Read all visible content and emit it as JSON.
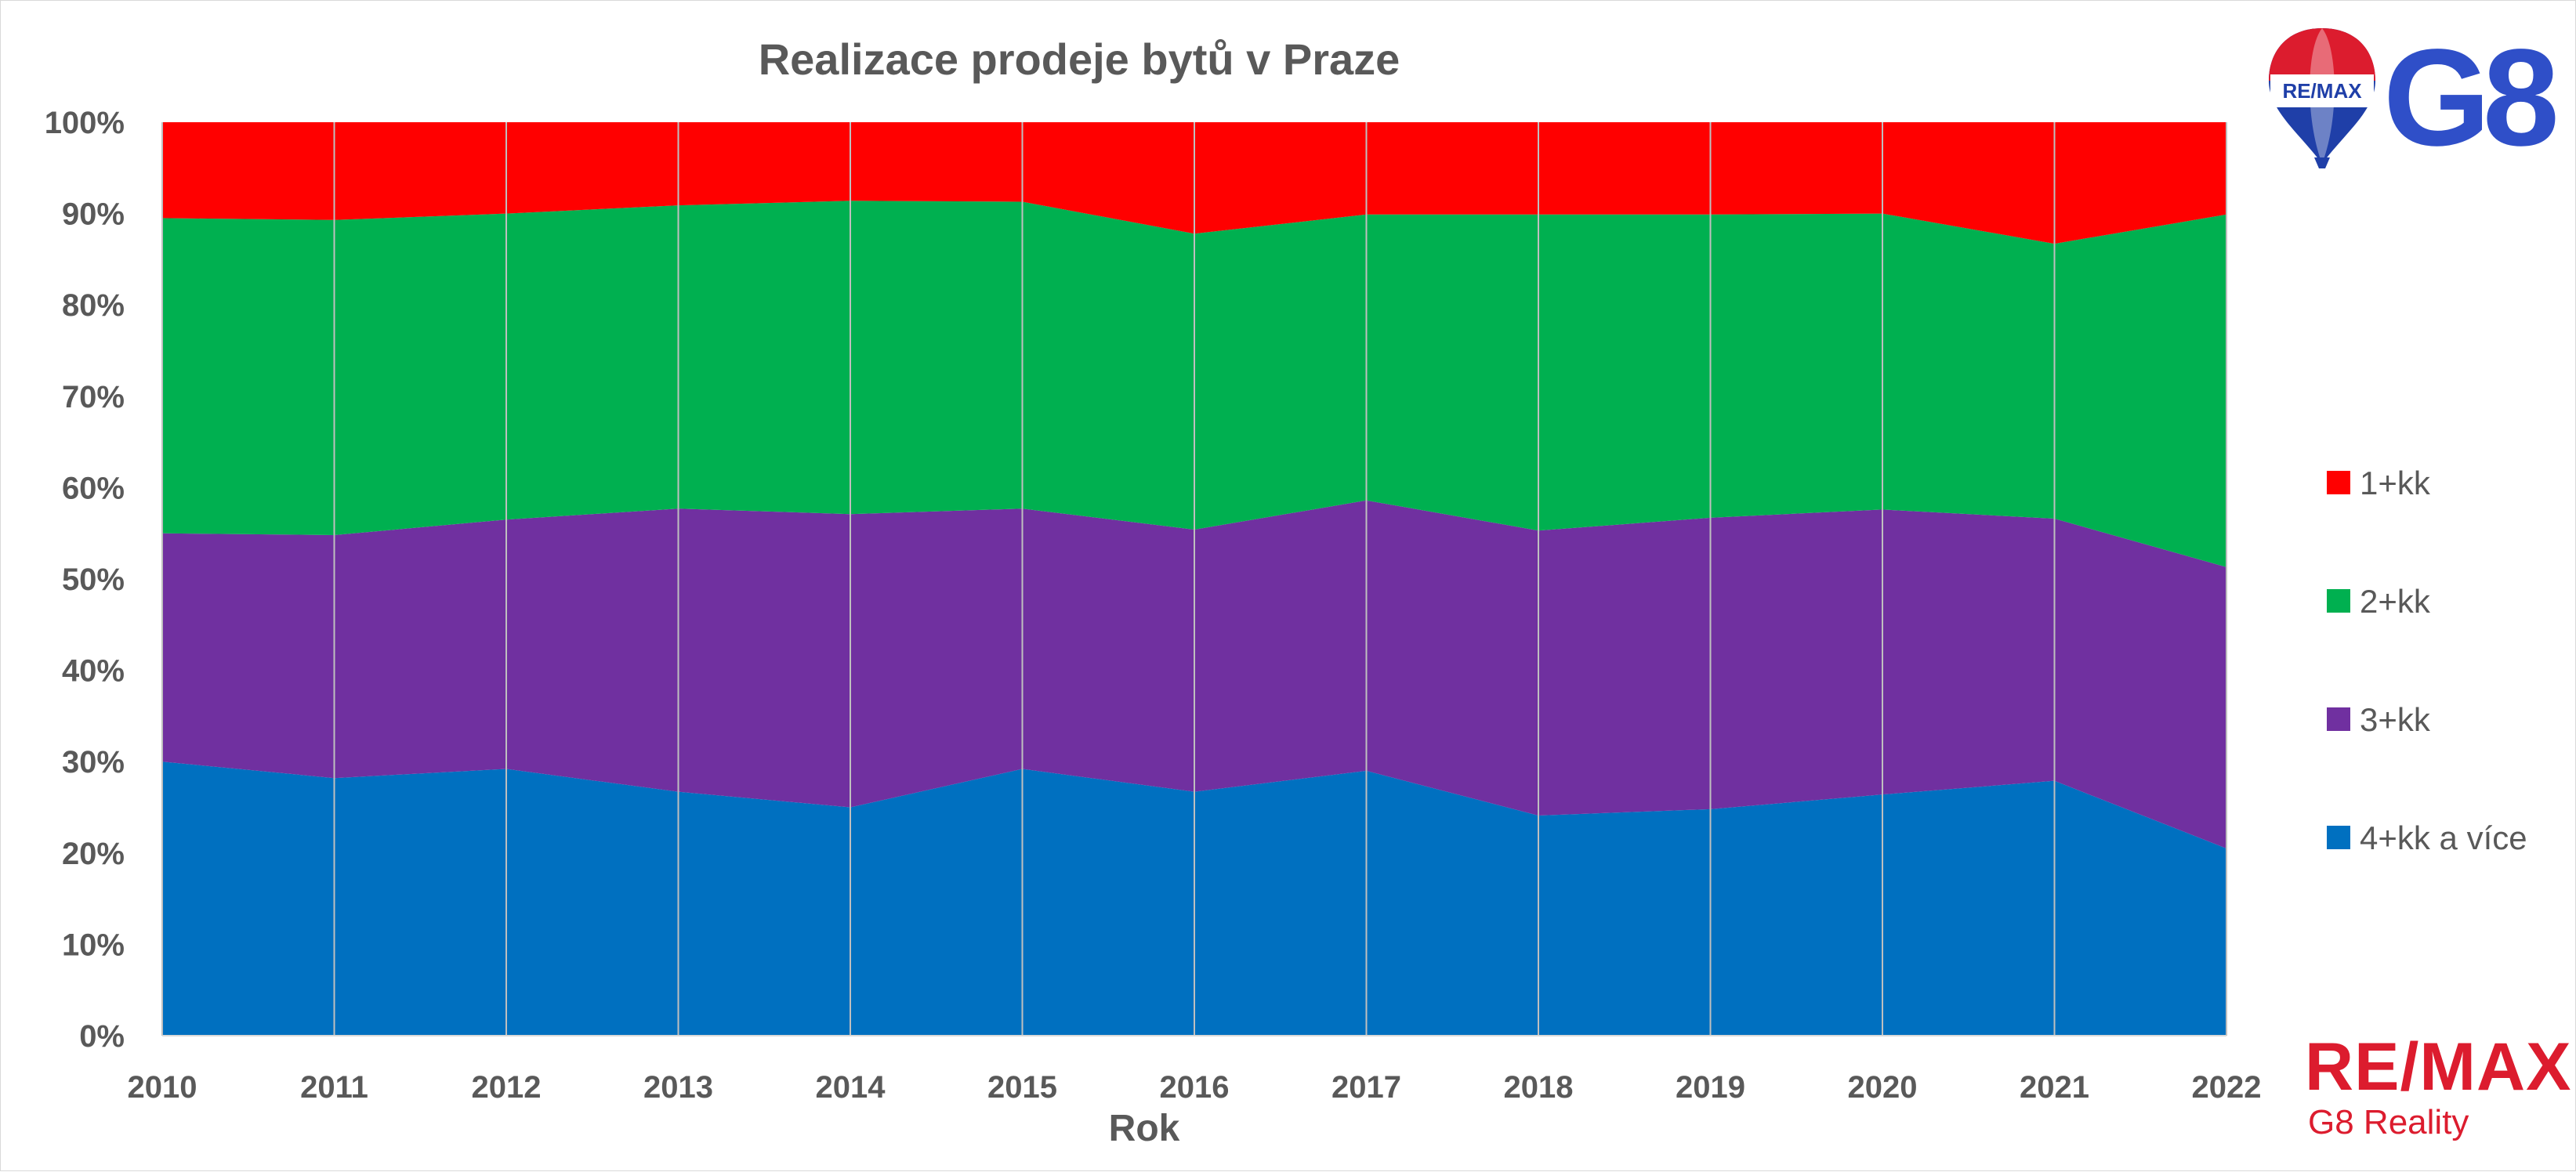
{
  "chart_data": {
    "type": "area",
    "stacked": true,
    "normalized": true,
    "title": "Realizace prodeje bytů v Praze",
    "xlabel": "Rok",
    "ylabel": "",
    "x": [
      "2010",
      "2011",
      "2012",
      "2013",
      "2014",
      "2015",
      "2016",
      "2017",
      "2018",
      "2019",
      "2020",
      "2021",
      "2022"
    ],
    "yticks": [
      "0%",
      "10%",
      "20%",
      "30%",
      "40%",
      "50%",
      "60%",
      "70%",
      "80%",
      "90%",
      "100%"
    ],
    "ylim": [
      0,
      100
    ],
    "grid": "vertical",
    "legend_position": "right",
    "series": [
      {
        "name": "4+kk a více",
        "color": "#0070c0",
        "values": [
          30.0,
          28.2,
          29.2,
          26.7,
          25.0,
          29.2,
          26.7,
          29.0,
          24.1,
          24.8,
          26.4,
          27.9,
          20.5
        ]
      },
      {
        "name": "3+kk",
        "color": "#7030a0",
        "values": [
          25.0,
          26.6,
          27.3,
          31.0,
          32.1,
          28.5,
          28.7,
          29.6,
          31.2,
          31.9,
          31.2,
          28.7,
          30.8
        ]
      },
      {
        "name": "2+kk",
        "color": "#00b050",
        "values": [
          34.5,
          34.5,
          33.5,
          33.2,
          34.3,
          33.6,
          32.4,
          31.3,
          34.6,
          33.2,
          32.4,
          30.1,
          38.6
        ]
      },
      {
        "name": "1+kk",
        "color": "#ff0000",
        "values": [
          10.5,
          10.7,
          10.0,
          9.1,
          8.6,
          8.7,
          12.2,
          10.1,
          10.1,
          10.1,
          10.0,
          13.3,
          10.1
        ]
      }
    ],
    "legend_order": [
      "1+kk",
      "2+kk",
      "3+kk",
      "4+kk a více"
    ]
  },
  "logos": {
    "balloon_text": "RE/MAX",
    "g8": "G8",
    "remax": "RE/MAX",
    "sub": "G8 Reality",
    "brand_blue": "#2f4fc8",
    "brand_red": "#dc1c2e"
  }
}
